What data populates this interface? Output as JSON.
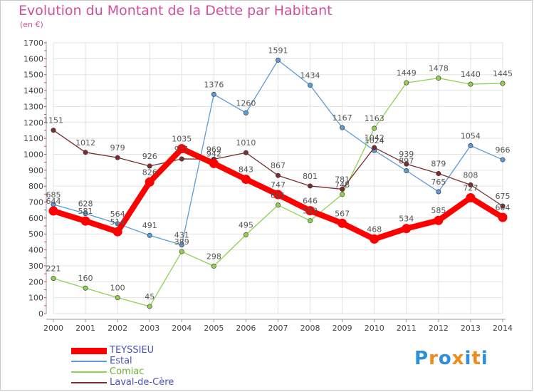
{
  "title": "Evolution du Montant de la Dette par Habitant",
  "subtitle": "(en €)",
  "logo_text": "Proxiti",
  "chart_data": {
    "type": "line",
    "title": "Evolution du Montant de la Dette par Habitant",
    "subtitle": "(en €)",
    "xlabel": "",
    "ylabel": "",
    "ylim": [
      0,
      1700
    ],
    "yticks": [
      0,
      100,
      200,
      300,
      400,
      500,
      600,
      700,
      800,
      900,
      1000,
      1100,
      1200,
      1300,
      1400,
      1500,
      1600,
      1700
    ],
    "grid": true,
    "legend_position": "bottom-left",
    "x": [
      "2000",
      "2001",
      "2002",
      "2003",
      "2004",
      "2005",
      "2006",
      "2007",
      "2008",
      "2009",
      "2010",
      "2011",
      "2012",
      "2013",
      "2014"
    ],
    "series": [
      {
        "name": "TEYSSIEU",
        "color": "#ff0000",
        "values": [
          644,
          581,
          514,
          826,
          1035,
          942,
          843,
          747,
          646,
          567,
          468,
          534,
          585,
          727,
          604
        ]
      },
      {
        "name": "Estal",
        "color": "#5b9bd5",
        "values": [
          685,
          628,
          564,
          491,
          431,
          1376,
          1260,
          1591,
          1434,
          1167,
          1024,
          897,
          765,
          1054,
          966
        ]
      },
      {
        "name": "Comiac",
        "color": "#8fd14f",
        "values": [
          221,
          160,
          100,
          45,
          389,
          298,
          495,
          681,
          583,
          748,
          1163,
          1449,
          1478,
          1440,
          1445
        ]
      },
      {
        "name": "Laval-de-Cère",
        "color": "#7b2c2c",
        "values": [
          1151,
          1012,
          979,
          926,
          971,
          969,
          1010,
          867,
          801,
          781,
          1042,
          939,
          879,
          808,
          675
        ]
      }
    ]
  }
}
